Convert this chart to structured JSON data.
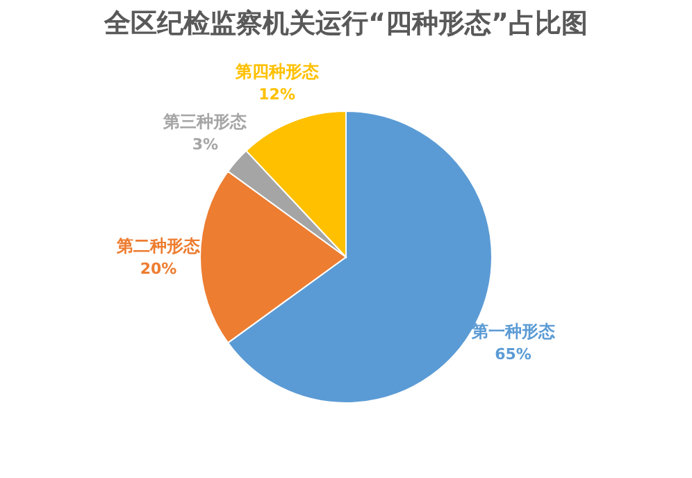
{
  "chart_data": {
    "type": "pie",
    "title": "全区纪检监察机关运行“四种形态”占比图",
    "categories": [
      "第一种形态",
      "第二种形态",
      "第三种形态",
      "第四种形态"
    ],
    "values": [
      65,
      20,
      3,
      12
    ],
    "colors": [
      "#5b9bd5",
      "#ed7d31",
      "#a5a5a5",
      "#ffc000"
    ],
    "value_labels": [
      "65%",
      "20%",
      "3%",
      "12%"
    ]
  }
}
